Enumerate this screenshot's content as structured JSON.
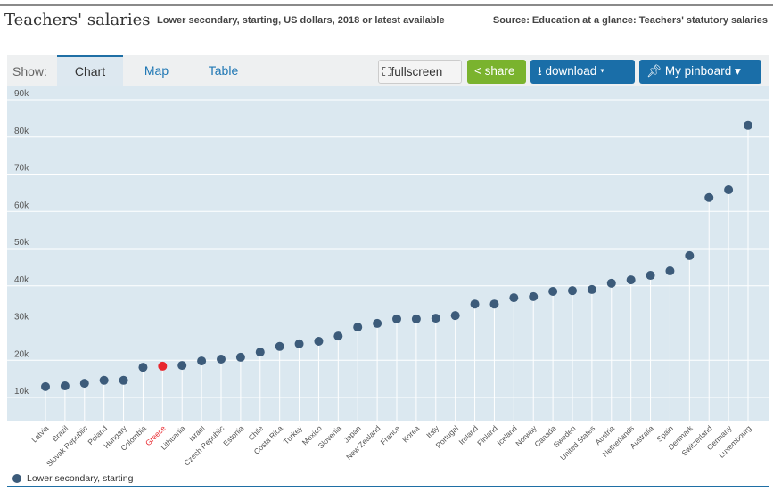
{
  "header": {
    "title": "Teachers' salaries",
    "subtitle": "Lower secondary, starting, US dollars, 2018 or latest available",
    "source": "Source: Education at a glance: Teachers' statutory salaries"
  },
  "toolbar": {
    "show_label": "Show:",
    "tabs": [
      {
        "label": "Chart",
        "active": true
      },
      {
        "label": "Map"
      },
      {
        "label": "Table"
      }
    ],
    "fullscreen": "fullscreen",
    "share": "share",
    "download": "download ▾",
    "pinboard": "My pinboard ▾"
  },
  "colors": {
    "series": "#3c5b7a",
    "highlight": "#e8262d",
    "share": "#7ab32e",
    "primary": "#1a6ea8"
  },
  "chart_data": {
    "type": "scatter",
    "style": "lollipop",
    "ylim": [
      0,
      90000
    ],
    "yticks": [
      10000,
      20000,
      30000,
      40000,
      50000,
      60000,
      70000,
      80000,
      90000
    ],
    "ytick_labels": [
      "10k",
      "20k",
      "30k",
      "40k",
      "50k",
      "60k",
      "70k",
      "80k",
      "90k"
    ],
    "grid": true,
    "legend": "bottom-left",
    "highlight": "Greece",
    "categories": [
      "Latvia",
      "Brazil",
      "Slovak Republic",
      "Poland",
      "Hungary",
      "Colombia",
      "Greece",
      "Lithuania",
      "Israel",
      "Czech Republic",
      "Estonia",
      "Chile",
      "Costa Rica",
      "Turkey",
      "Mexico",
      "Slovenia",
      "Japan",
      "New Zealand",
      "France",
      "Korea",
      "Italy",
      "Portugal",
      "Ireland",
      "Finland",
      "Iceland",
      "Norway",
      "Canada",
      "Sweden",
      "United States",
      "Austria",
      "Netherlands",
      "Australia",
      "Spain",
      "Denmark",
      "Switzerland",
      "Germany",
      "Luxembourg"
    ],
    "series": [
      {
        "name": "Lower secondary, starting",
        "values": [
          12900,
          13100,
          13800,
          14600,
          14600,
          18100,
          18400,
          18600,
          19800,
          20300,
          20800,
          22200,
          23700,
          24400,
          25100,
          26500,
          28900,
          29900,
          31100,
          31100,
          31300,
          32000,
          35100,
          35100,
          36800,
          37100,
          38500,
          38700,
          39000,
          40700,
          41600,
          42800,
          44000,
          48100,
          63700,
          65800,
          83100
        ]
      }
    ]
  }
}
